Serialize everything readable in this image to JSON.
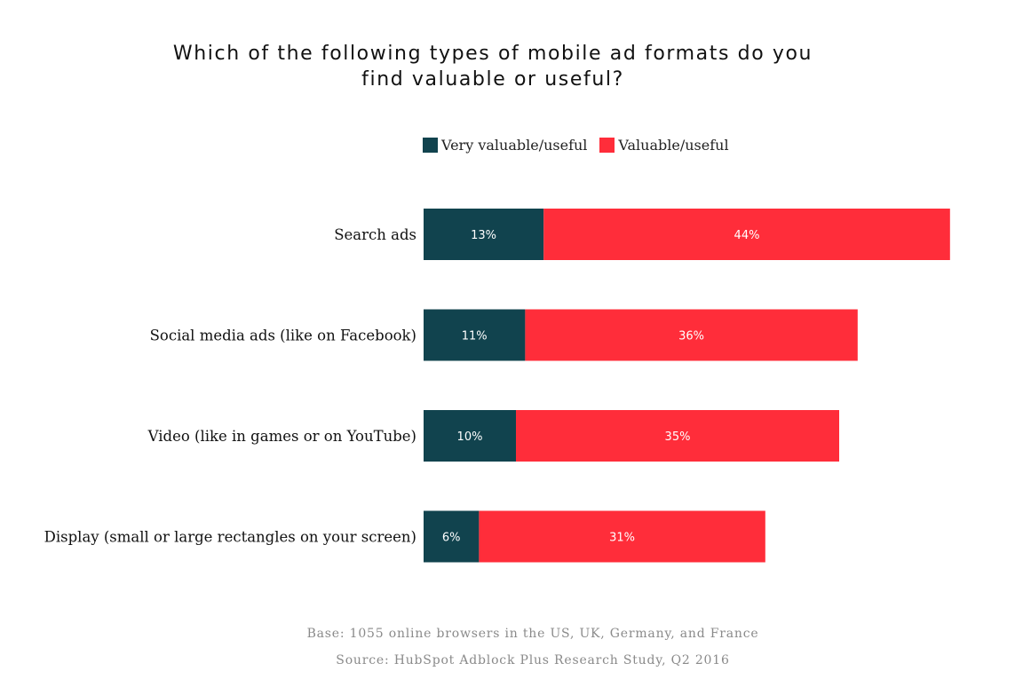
{
  "colors": {
    "very_valuable": "#11434e",
    "valuable": "#ff2d3a",
    "category_text": "#111111",
    "bar_label_text": "#ffffff",
    "footnote_text": "#8a8a8a"
  },
  "chart_data": {
    "type": "bar",
    "orientation": "horizontal",
    "stacked": true,
    "title_lines": [
      "Which of the following types of mobile ad formats do you",
      "find valuable or useful?"
    ],
    "categories": [
      "Search ads",
      "Social media ads (like on Facebook)",
      "Video (like in games or on YouTube)",
      "Display (small or large rectangles on your screen)"
    ],
    "series": [
      {
        "name": "Very valuable/useful",
        "color": "#11434e",
        "values": [
          13,
          11,
          10,
          6
        ],
        "labels": [
          "13%",
          "11%",
          "10%",
          "6%"
        ]
      },
      {
        "name": "Valuable/useful",
        "color": "#ff2d3a",
        "values": [
          44,
          36,
          35,
          31
        ],
        "labels": [
          "44%",
          "36%",
          "35%",
          "31%"
        ]
      }
    ],
    "unit": "%",
    "legend_position": "top",
    "grid": false,
    "axes_visible": false
  },
  "footnotes": {
    "base": "Base: 1055 online browsers in the US, UK, Germany, and France",
    "source": "Source: HubSpot Adblock Plus Research Study, Q2 2016"
  }
}
